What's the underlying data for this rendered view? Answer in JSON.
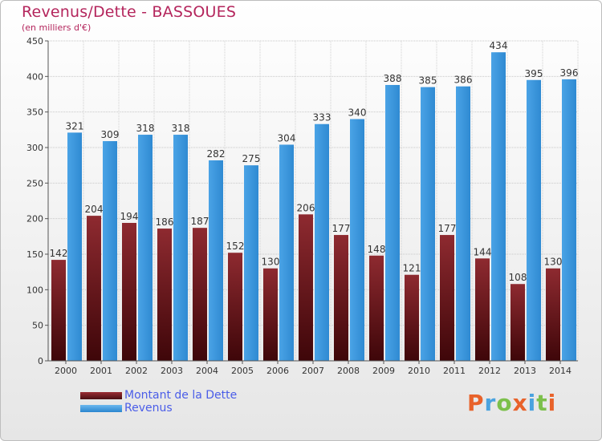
{
  "title": "Revenus/Dette - BASSOUES",
  "subtitle": "(en milliers d'€)",
  "logo": {
    "text": "Proxiti",
    "letter_colors": [
      "#e8622a",
      "#4aa3df",
      "#7cc04b",
      "#e8622a",
      "#4aa3df",
      "#7cc04b",
      "#e8622a"
    ]
  },
  "legend": [
    {
      "label": "Montant de la Dette",
      "color": "#7a1e24"
    },
    {
      "label": "Revenus",
      "color": "#3d98dc"
    }
  ],
  "chart_data": {
    "type": "bar",
    "title": "Revenus/Dette - BASSOUES",
    "ylabel": "(en milliers d'€)",
    "categories": [
      "2000",
      "2001",
      "2002",
      "2003",
      "2004",
      "2005",
      "2006",
      "2007",
      "2008",
      "2009",
      "2010",
      "2011",
      "2012",
      "2013",
      "2014"
    ],
    "series": [
      {
        "name": "Montant de la Dette",
        "color": "#7a1e24",
        "values": [
          142,
          204,
          194,
          186,
          187,
          152,
          130,
          206,
          177,
          148,
          121,
          177,
          144,
          108,
          130
        ]
      },
      {
        "name": "Revenus",
        "color": "#3d98dc",
        "values": [
          321,
          309,
          318,
          318,
          282,
          275,
          304,
          333,
          340,
          388,
          385,
          386,
          434,
          395,
          396
        ]
      }
    ],
    "ylim": [
      0,
      450
    ],
    "yticks": [
      0,
      50,
      100,
      150,
      200,
      250,
      300,
      350,
      400,
      450
    ],
    "grid": true,
    "legend_position": "bottom-left"
  }
}
